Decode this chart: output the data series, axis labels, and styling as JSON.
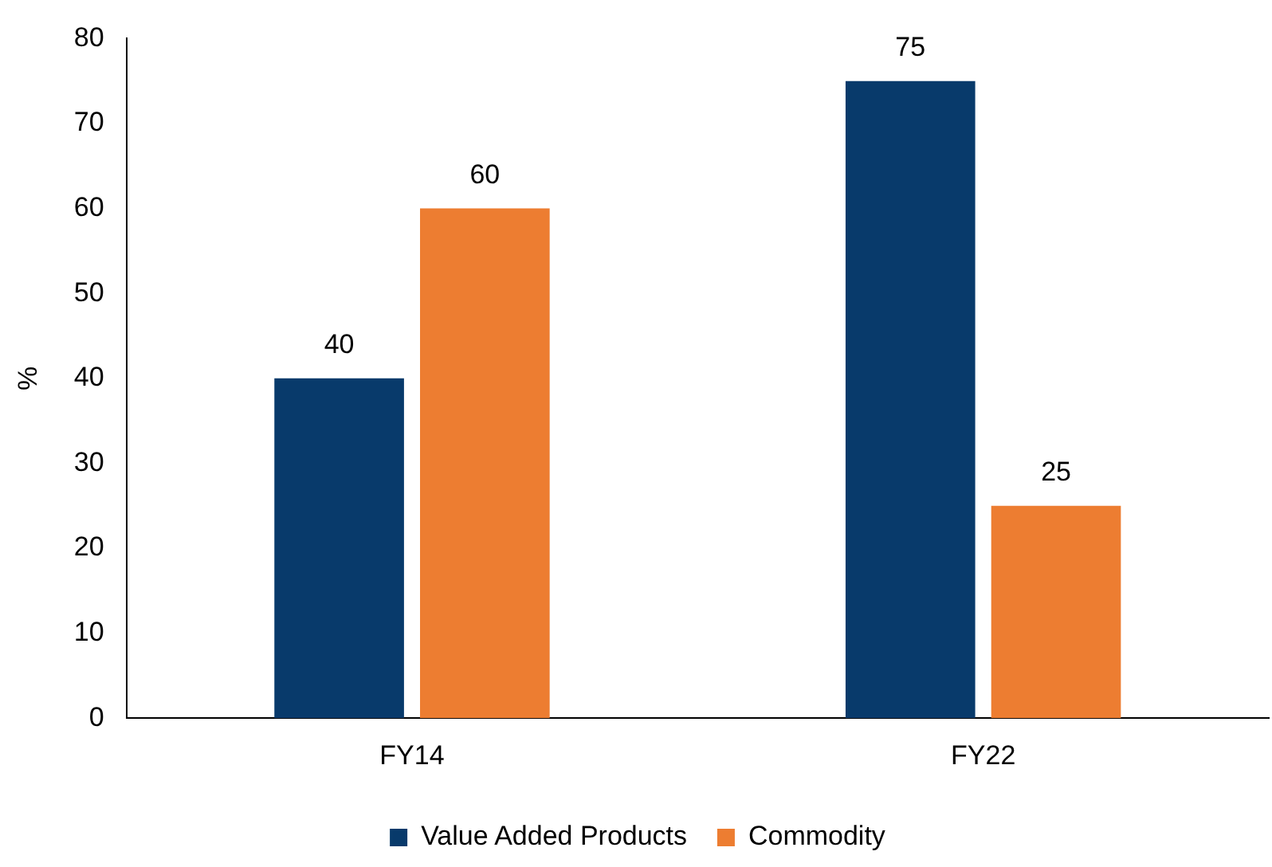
{
  "chart_data": {
    "type": "bar",
    "ylabel": "%",
    "categories": [
      "FY14",
      "FY22"
    ],
    "series": [
      {
        "name": "Value Added Products",
        "color": "#083a6b",
        "values": [
          40,
          75
        ]
      },
      {
        "name": "Commodity",
        "color": "#ed7d31",
        "values": [
          60,
          25
        ]
      }
    ],
    "ylim": [
      0,
      80
    ],
    "yticks": [
      0,
      10,
      20,
      30,
      40,
      50,
      60,
      70,
      80
    ],
    "grid": false,
    "legend": "bottom",
    "data_labels": true
  }
}
